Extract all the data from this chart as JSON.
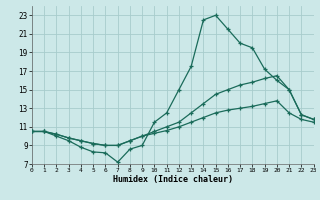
{
  "xlabel": "Humidex (Indice chaleur)",
  "xlim": [
    0,
    23
  ],
  "ylim": [
    7,
    24
  ],
  "yticks": [
    7,
    9,
    11,
    13,
    15,
    17,
    19,
    21,
    23
  ],
  "xticks": [
    0,
    1,
    2,
    3,
    4,
    5,
    6,
    7,
    8,
    9,
    10,
    11,
    12,
    13,
    14,
    15,
    16,
    17,
    18,
    19,
    20,
    21,
    22,
    23
  ],
  "bg_color": "#cce8e8",
  "grid_color": "#a8cccc",
  "line_color": "#1a6b5a",
  "line1_x": [
    0,
    1,
    2,
    3,
    4,
    5,
    6,
    7,
    8,
    9,
    10,
    11,
    12,
    13,
    14,
    15,
    16,
    17,
    18,
    19,
    20,
    21,
    22,
    23
  ],
  "line1_y": [
    10.5,
    10.5,
    10.0,
    9.5,
    8.8,
    8.3,
    8.2,
    7.2,
    8.6,
    9.0,
    11.5,
    12.5,
    15.0,
    17.5,
    22.5,
    23.0,
    21.5,
    20.0,
    19.5,
    17.2,
    16.0,
    15.0,
    12.3,
    11.8
  ],
  "line2_x": [
    0,
    1,
    2,
    3,
    4,
    5,
    6,
    7,
    8,
    9,
    10,
    11,
    12,
    13,
    14,
    15,
    16,
    17,
    18,
    19,
    20,
    21,
    22,
    23
  ],
  "line2_y": [
    10.5,
    10.5,
    10.2,
    9.8,
    9.5,
    9.2,
    9.0,
    9.0,
    9.5,
    10.0,
    10.5,
    11.0,
    11.5,
    12.5,
    13.5,
    14.5,
    15.0,
    15.5,
    15.8,
    16.2,
    16.5,
    15.0,
    12.3,
    11.8
  ],
  "line3_x": [
    0,
    1,
    2,
    3,
    4,
    5,
    6,
    7,
    8,
    9,
    10,
    11,
    12,
    13,
    14,
    15,
    16,
    17,
    18,
    19,
    20,
    21,
    22,
    23
  ],
  "line3_y": [
    10.5,
    10.5,
    10.2,
    9.8,
    9.5,
    9.2,
    9.0,
    9.0,
    9.5,
    10.0,
    10.3,
    10.6,
    11.0,
    11.5,
    12.0,
    12.5,
    12.8,
    13.0,
    13.2,
    13.5,
    13.8,
    12.5,
    11.8,
    11.5
  ]
}
